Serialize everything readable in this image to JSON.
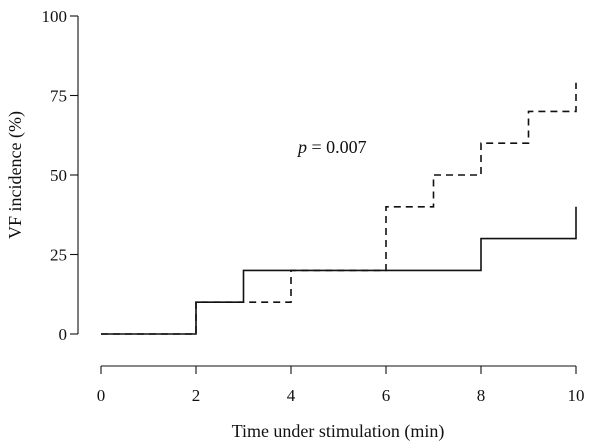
{
  "chart_data": {
    "type": "line",
    "step": true,
    "xlabel": "Time under stimulation (min)",
    "ylabel": "VF incidence (%)",
    "xlim": [
      0,
      10
    ],
    "ylim": [
      0,
      100
    ],
    "xticks": [
      0,
      2,
      4,
      6,
      8,
      10
    ],
    "yticks": [
      0,
      25,
      50,
      75,
      100
    ],
    "grid": false,
    "series": [
      {
        "line_style": "dashed",
        "color": "#111111",
        "x": [
          0,
          2,
          4,
          6,
          7,
          8,
          9,
          10
        ],
        "y": [
          0,
          10,
          20,
          40,
          50,
          60,
          70,
          79
        ]
      },
      {
        "line_style": "solid",
        "color": "#111111",
        "x": [
          0,
          2,
          3,
          8,
          10
        ],
        "y": [
          0,
          10,
          20,
          30,
          40
        ]
      }
    ],
    "annotation": {
      "italic": "p",
      "text": " = 0.007"
    }
  }
}
